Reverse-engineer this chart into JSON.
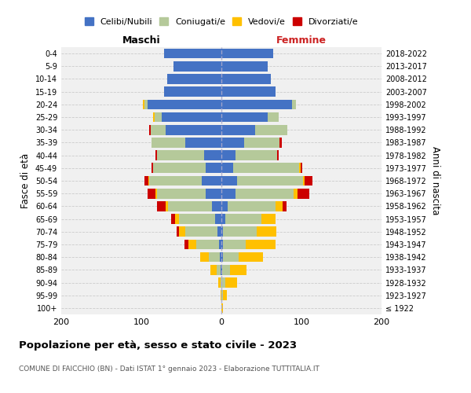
{
  "age_groups": [
    "100+",
    "95-99",
    "90-94",
    "85-89",
    "80-84",
    "75-79",
    "70-74",
    "65-69",
    "60-64",
    "55-59",
    "50-54",
    "45-49",
    "40-44",
    "35-39",
    "30-34",
    "25-29",
    "20-24",
    "15-19",
    "10-14",
    "5-9",
    "0-4"
  ],
  "birth_years": [
    "≤ 1922",
    "1923-1927",
    "1928-1932",
    "1933-1937",
    "1938-1942",
    "1943-1947",
    "1948-1952",
    "1953-1957",
    "1958-1962",
    "1963-1967",
    "1968-1972",
    "1973-1977",
    "1978-1982",
    "1983-1987",
    "1988-1992",
    "1993-1997",
    "1998-2002",
    "2003-2007",
    "2008-2012",
    "2013-2017",
    "2018-2022"
  ],
  "colors": {
    "celibi": "#4472c4",
    "coniugati": "#b5c99a",
    "vedovi": "#ffc000",
    "divorziati": "#cc0000"
  },
  "maschi": {
    "celibi": [
      0,
      0,
      0,
      1,
      2,
      3,
      5,
      8,
      12,
      20,
      25,
      20,
      22,
      45,
      70,
      75,
      92,
      72,
      68,
      60,
      72
    ],
    "coniugati": [
      0,
      0,
      1,
      5,
      14,
      28,
      40,
      45,
      55,
      60,
      65,
      65,
      58,
      42,
      18,
      8,
      4,
      0,
      0,
      0,
      0
    ],
    "vedovi": [
      0,
      1,
      3,
      8,
      10,
      10,
      8,
      5,
      3,
      2,
      1,
      0,
      0,
      0,
      0,
      2,
      2,
      0,
      0,
      0,
      0
    ],
    "divorziati": [
      0,
      0,
      0,
      0,
      0,
      5,
      3,
      5,
      10,
      10,
      5,
      2,
      2,
      0,
      2,
      0,
      0,
      0,
      0,
      0,
      0
    ]
  },
  "femmine": {
    "celibi": [
      0,
      0,
      0,
      1,
      2,
      2,
      2,
      5,
      8,
      18,
      20,
      15,
      18,
      28,
      42,
      58,
      88,
      68,
      62,
      58,
      65
    ],
    "coniugati": [
      0,
      2,
      5,
      10,
      20,
      28,
      42,
      45,
      60,
      72,
      82,
      82,
      52,
      45,
      40,
      14,
      5,
      0,
      0,
      0,
      0
    ],
    "vedovi": [
      2,
      5,
      15,
      20,
      30,
      38,
      25,
      18,
      8,
      5,
      2,
      2,
      0,
      0,
      0,
      0,
      0,
      0,
      0,
      0,
      0
    ],
    "divorziati": [
      0,
      0,
      0,
      0,
      0,
      0,
      0,
      0,
      5,
      15,
      10,
      2,
      2,
      2,
      0,
      0,
      0,
      0,
      0,
      0,
      0
    ]
  },
  "xlim": 200,
  "title": "Popolazione per età, sesso e stato civile - 2023",
  "subtitle": "COMUNE DI FAICCHIO (BN) - Dati ISTAT 1° gennaio 2023 - Elaborazione TUTTITALIA.IT",
  "ylabel_left": "Fasce di età",
  "ylabel_right": "Anni di nascita",
  "xlabel_maschi": "Maschi",
  "xlabel_femmine": "Femmine",
  "legend_labels": [
    "Celibi/Nubili",
    "Coniugati/e",
    "Vedovi/e",
    "Divorziati/e"
  ],
  "bg_color": "#f0f0f0",
  "grid_color": "#cccccc"
}
